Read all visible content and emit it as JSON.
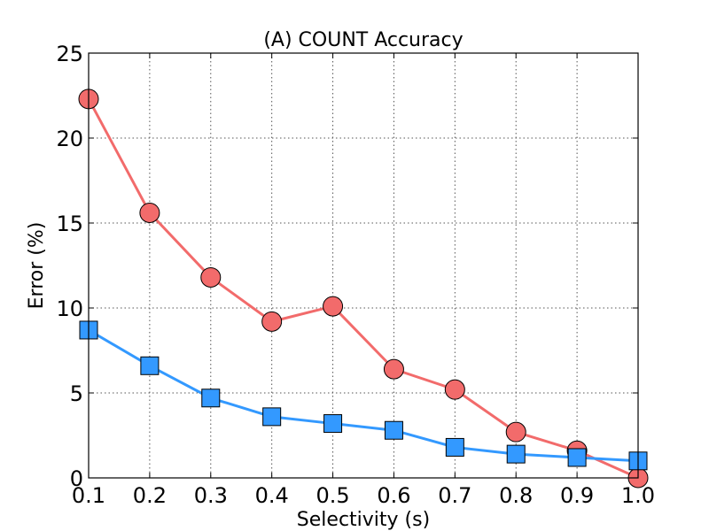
{
  "chart_data": {
    "type": "line",
    "title": "(A) COUNT Accuracy",
    "xlabel": "Selectivity (s)",
    "ylabel": "Error (%)",
    "xlim": [
      0.1,
      1.0
    ],
    "ylim": [
      0,
      25
    ],
    "xticks": [
      "0.1",
      "0.2",
      "0.3",
      "0.4",
      "0.5",
      "0.6",
      "0.7",
      "0.8",
      "0.9",
      "1.0"
    ],
    "yticks": [
      "0",
      "5",
      "10",
      "15",
      "20",
      "25"
    ],
    "grid": true,
    "legend": "none",
    "x": [
      0.1,
      0.2,
      0.3,
      0.4,
      0.5,
      0.6,
      0.7,
      0.8,
      0.9,
      1.0
    ],
    "series": [
      {
        "marker": "circle",
        "color": "#f26b6b",
        "values": [
          22.3,
          15.6,
          11.8,
          9.2,
          10.1,
          6.4,
          5.2,
          2.7,
          1.6,
          0.0
        ]
      },
      {
        "marker": "square",
        "color": "#3399ff",
        "values": [
          8.7,
          6.6,
          4.7,
          3.6,
          3.2,
          2.8,
          1.8,
          1.4,
          1.2,
          1.0
        ]
      }
    ]
  }
}
